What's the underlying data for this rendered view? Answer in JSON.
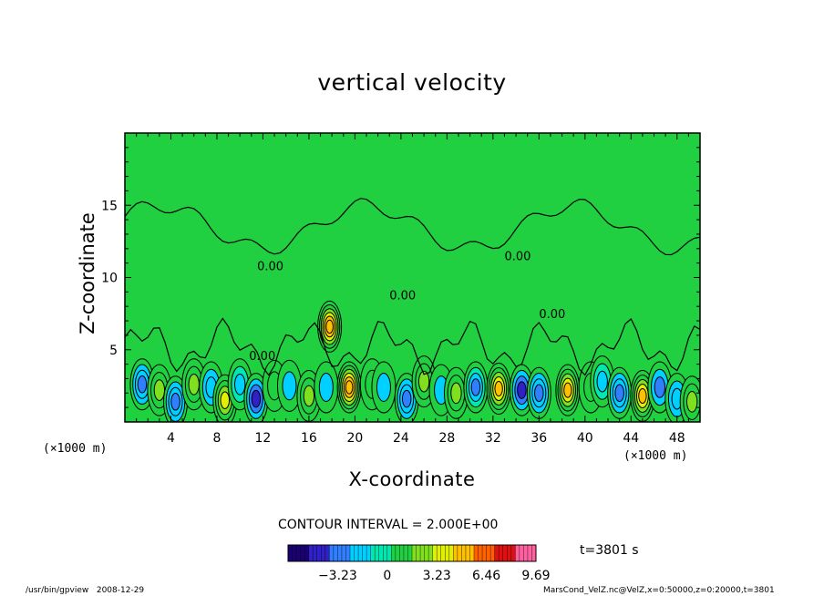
{
  "chart_data": {
    "type": "heatmap",
    "title": "vertical velocity",
    "xlabel": "X-coordinate",
    "ylabel": "Z-coordinate",
    "x_unit": "(×1000 m)",
    "xlim": [
      0,
      50
    ],
    "ylim": [
      0,
      20
    ],
    "x_ticks": [
      4,
      8,
      12,
      16,
      20,
      24,
      28,
      32,
      36,
      40,
      44,
      48
    ],
    "y_ticks": [
      5,
      10,
      15
    ],
    "contour_interval_label": "CONTOUR INTERVAL = 2.000E+00",
    "contour_label": "0.00",
    "colorbar": {
      "min": -6.46,
      "max": 9.69,
      "tick_values": [
        -3.23,
        0,
        3.23,
        6.46,
        9.69
      ],
      "tick_labels": [
        "−3.23",
        "0",
        "3.23",
        "6.46",
        "9.69"
      ],
      "colors": [
        "#1a0070",
        "#3020c8",
        "#2f7fff",
        "#00d0ff",
        "#00e8b0",
        "#20d040",
        "#80e020",
        "#e0f000",
        "#ffc000",
        "#ff6000",
        "#e01010",
        "#ff60a0"
      ]
    },
    "cells": [
      {
        "x": 1.5,
        "z": 2.6,
        "w": -5.5
      },
      {
        "x": 3.0,
        "z": 2.2,
        "w": 3.5
      },
      {
        "x": 4.4,
        "z": 1.4,
        "w": -5.5
      },
      {
        "x": 6.0,
        "z": 2.6,
        "w": 3.0
      },
      {
        "x": 7.5,
        "z": 2.4,
        "w": -4.0
      },
      {
        "x": 8.7,
        "z": 1.5,
        "w": 5.0
      },
      {
        "x": 10.0,
        "z": 2.6,
        "w": -3.0
      },
      {
        "x": 11.4,
        "z": 1.6,
        "w": -6.5
      },
      {
        "x": 13.0,
        "z": 2.5,
        "w": 2.5
      },
      {
        "x": 14.3,
        "z": 2.5,
        "w": -2.5
      },
      {
        "x": 16.0,
        "z": 1.8,
        "w": 4.5
      },
      {
        "x": 17.5,
        "z": 2.4,
        "w": -2.5
      },
      {
        "x": 19.5,
        "z": 2.4,
        "w": 9.0
      },
      {
        "x": 21.5,
        "z": 2.6,
        "w": 2.5
      },
      {
        "x": 22.5,
        "z": 2.4,
        "w": -2.5
      },
      {
        "x": 24.5,
        "z": 1.6,
        "w": -6.0
      },
      {
        "x": 26.0,
        "z": 2.8,
        "w": 3.0
      },
      {
        "x": 27.5,
        "z": 2.2,
        "w": -2.5
      },
      {
        "x": 28.8,
        "z": 2.0,
        "w": 3.5
      },
      {
        "x": 30.5,
        "z": 2.4,
        "w": -5.0
      },
      {
        "x": 32.5,
        "z": 2.3,
        "w": 7.5
      },
      {
        "x": 34.5,
        "z": 2.2,
        "w": -6.5
      },
      {
        "x": 36.0,
        "z": 2.0,
        "w": -5.5
      },
      {
        "x": 38.5,
        "z": 2.2,
        "w": 8.0
      },
      {
        "x": 40.5,
        "z": 2.4,
        "w": 2.5
      },
      {
        "x": 41.5,
        "z": 2.8,
        "w": -3.5
      },
      {
        "x": 43.0,
        "z": 2.0,
        "w": -5.5
      },
      {
        "x": 45.0,
        "z": 1.8,
        "w": 7.5
      },
      {
        "x": 46.5,
        "z": 2.4,
        "w": -4.5
      },
      {
        "x": 48.0,
        "z": 1.6,
        "w": -4.0
      },
      {
        "x": 49.3,
        "z": 1.4,
        "w": 4.0
      },
      {
        "x": 17.8,
        "z": 6.6,
        "w": 9.0
      }
    ]
  },
  "footer": {
    "program": "/usr/bin/gpview",
    "date": "2008-12-29",
    "source": "MarsCond_VelZ.nc@VelZ,x=0:50000,z=0:20000,t=3801"
  },
  "time_label": "t=3801 s"
}
